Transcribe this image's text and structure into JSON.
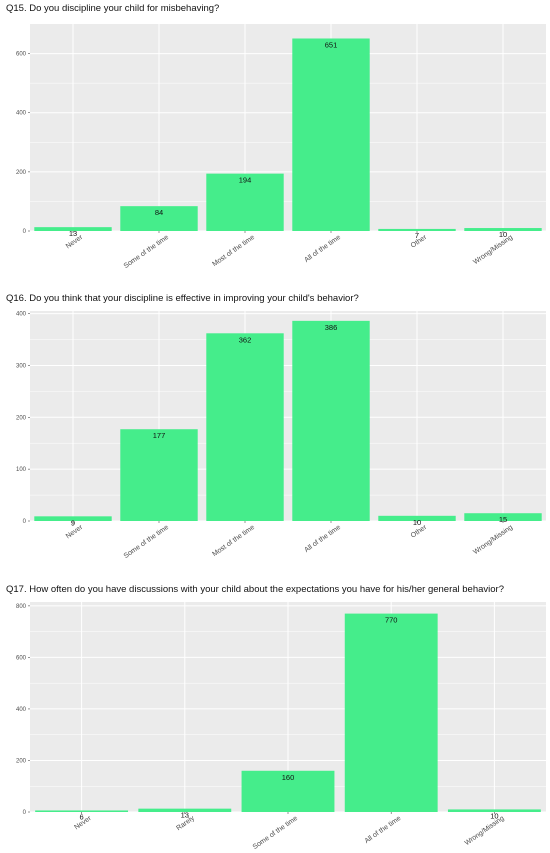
{
  "colors": {
    "bar": "#45ed8b",
    "panel_bg": "#ebebeb",
    "grid": "#ffffff"
  },
  "chart_data": [
    {
      "type": "bar",
      "title": "Q15. Do you discipline your child for misbehaving?",
      "categories": [
        "Never",
        "Some of the time",
        "Most of the time",
        "All of the time",
        "Other",
        "Wrong/Missing"
      ],
      "values": [
        13,
        84,
        194,
        651,
        7,
        10
      ],
      "yticks": [
        0,
        200,
        400,
        600
      ],
      "ylim": [
        0,
        700
      ],
      "grid": true
    },
    {
      "type": "bar",
      "title": "Q16. Do you think that your discipline is effective in improving your child's behavior?",
      "categories": [
        "Never",
        "Some of the time",
        "Most of the time",
        "All of the time",
        "Other",
        "Wrong/Missing"
      ],
      "values": [
        9,
        177,
        362,
        386,
        10,
        15
      ],
      "yticks": [
        0,
        100,
        200,
        300,
        400
      ],
      "ylim": [
        0,
        405
      ],
      "grid": true
    },
    {
      "type": "bar",
      "title": "Q17. How often do you have discussions with your child about the expectations you have for his/her general behavior?",
      "categories": [
        "Never",
        "Rarely",
        "Some of the time",
        "All of the time",
        "Wrong/Missing"
      ],
      "values": [
        6,
        13,
        160,
        770,
        10
      ],
      "yticks": [
        0,
        200,
        400,
        600,
        800
      ],
      "ylim": [
        0,
        815
      ],
      "grid": true
    }
  ]
}
